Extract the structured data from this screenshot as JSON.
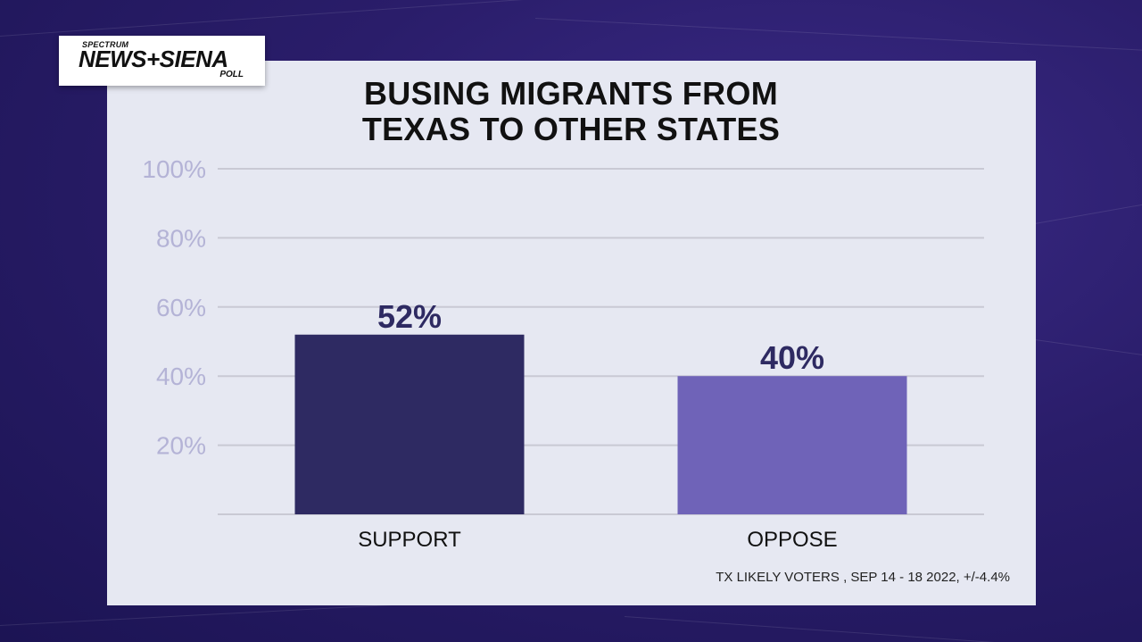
{
  "logo": {
    "small": "SPECTRUM",
    "main": "NEWS+SIENA",
    "poll": "POLL"
  },
  "title_line1": "BUSING MIGRANTS FROM",
  "title_line2": "TEXAS TO OTHER STATES",
  "footnote": "TX LIKELY VOTERS , SEP 14 - 18 2022, +/-4.4%",
  "colors": {
    "background": "#2a1d6a",
    "panel": "#e6e8f2",
    "support_bar": "#2e2a62",
    "oppose_bar": "#6f63b8",
    "value_label": "#2e2a62",
    "tick_label": "#b4b3d6",
    "gridline": "#c9c9d4"
  },
  "chart_data": {
    "type": "bar",
    "title": "BUSING MIGRANTS FROM TEXAS TO OTHER STATES",
    "categories": [
      "SUPPORT",
      "OPPOSE"
    ],
    "values": [
      52,
      40
    ],
    "value_labels": [
      "52%",
      "40%"
    ],
    "yticks": [
      "20%",
      "40%",
      "60%",
      "80%",
      "100%"
    ],
    "ytick_values": [
      20,
      40,
      60,
      80,
      100
    ],
    "ylim": [
      0,
      100
    ],
    "xlabel": "",
    "ylabel": "",
    "grid": true,
    "legend": "none"
  }
}
